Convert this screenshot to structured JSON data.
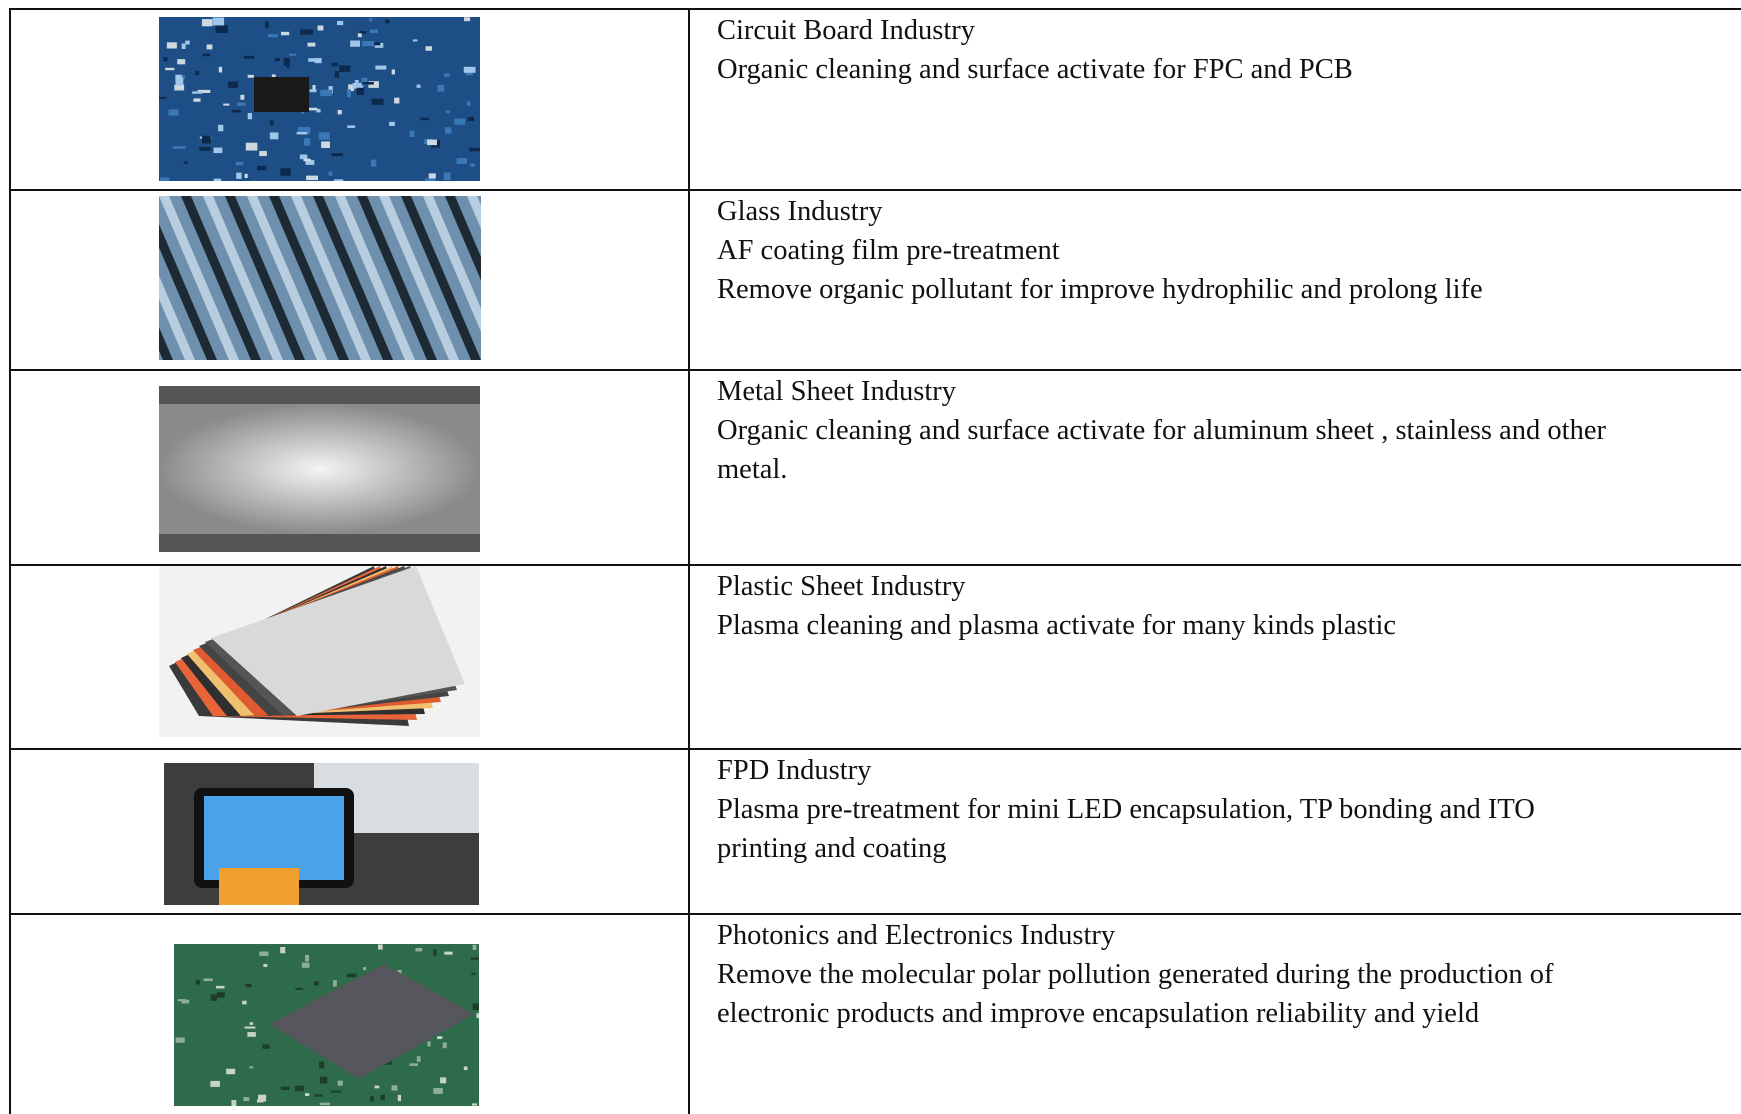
{
  "table": {
    "rows": [
      {
        "title": "Circuit Board Industry",
        "lines": [
          "Organic cleaning and surface activate for FPC and PCB"
        ]
      },
      {
        "title": "Glass Industry",
        "lines": [
          "AF coating film pre-treatment",
          "Remove organic pollutant for improve hydrophilic and prolong life"
        ]
      },
      {
        "title": "Metal Sheet Industry",
        "lines": [
          "Organic cleaning and surface activate for aluminum sheet , stainless and other",
          "metal."
        ]
      },
      {
        "title": "Plastic Sheet Industry",
        "lines": [
          "Plasma cleaning and plasma activate for many kinds plastic"
        ]
      },
      {
        "title": "FPD Industry",
        "lines": [
          "Plasma pre-treatment for mini LED encapsulation, TP bonding and ITO",
          "printing and coating"
        ]
      },
      {
        "title": "Photonics and Electronics Industry",
        "lines": [
          "Remove the molecular polar pollution generated during the production of",
          "electronic products and improve encapsulation reliability and yield"
        ]
      }
    ]
  }
}
